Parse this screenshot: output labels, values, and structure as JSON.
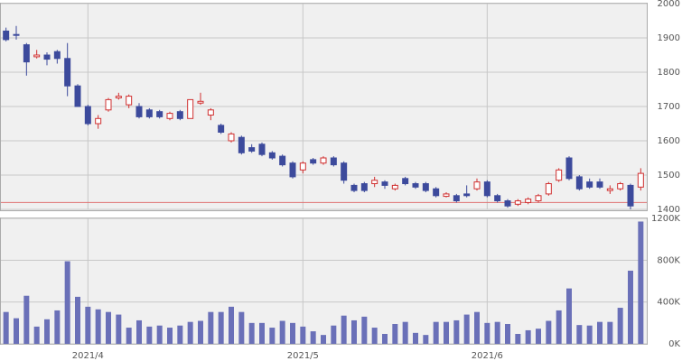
{
  "chart_data": [
    {
      "type": "candlestick",
      "categories": [
        null,
        null,
        null,
        null,
        null,
        null,
        null,
        null,
        "2021/4",
        null,
        null,
        null,
        null,
        null,
        null,
        null,
        null,
        null,
        null,
        null,
        null,
        null,
        null,
        null,
        null,
        null,
        null,
        null,
        null,
        "2021/5",
        null,
        null,
        null,
        null,
        null,
        null,
        null,
        null,
        null,
        null,
        null,
        null,
        null,
        null,
        null,
        null,
        null,
        "2021/6",
        null,
        null,
        null,
        null,
        null,
        null,
        null,
        null,
        null,
        null,
        null,
        null,
        null,
        null,
        null
      ],
      "series": [
        {
          "name": "open",
          "values": [
            1920,
            1910,
            1880,
            1845,
            1850,
            1860,
            1840,
            1760,
            1700,
            1650,
            1690,
            1725,
            1705,
            1700,
            1690,
            1685,
            1665,
            1685,
            1665,
            1710,
            1675,
            1645,
            1600,
            1610,
            1580,
            1590,
            1565,
            1555,
            1535,
            1515,
            1545,
            1535,
            1550,
            1535,
            1470,
            1475,
            1475,
            1480,
            1460,
            1490,
            1475,
            1475,
            1460,
            1438,
            1440,
            1445,
            1460,
            1480,
            1440,
            1425,
            1415,
            1420,
            1425,
            1445,
            1485,
            1550,
            1495,
            1480,
            1480,
            1455,
            1460,
            1470,
            1465
          ]
        },
        {
          "name": "high",
          "values": [
            1930,
            1935,
            1885,
            1865,
            1858,
            1865,
            1885,
            1765,
            1705,
            1675,
            1725,
            1740,
            1735,
            1710,
            1695,
            1690,
            1685,
            1690,
            1720,
            1740,
            1695,
            1650,
            1625,
            1615,
            1590,
            1595,
            1570,
            1560,
            1540,
            1540,
            1550,
            1555,
            1555,
            1540,
            1475,
            1480,
            1495,
            1485,
            1475,
            1495,
            1480,
            1480,
            1465,
            1450,
            1445,
            1470,
            1490,
            1485,
            1445,
            1430,
            1430,
            1435,
            1445,
            1480,
            1520,
            1555,
            1500,
            1490,
            1490,
            1470,
            1480,
            1475,
            1520
          ]
        },
        {
          "name": "low",
          "values": [
            1890,
            1895,
            1790,
            1840,
            1820,
            1825,
            1730,
            1700,
            1645,
            1635,
            1685,
            1720,
            1695,
            1665,
            1665,
            1665,
            1660,
            1660,
            1665,
            1705,
            1660,
            1620,
            1595,
            1560,
            1565,
            1555,
            1545,
            1525,
            1490,
            1505,
            1530,
            1530,
            1525,
            1475,
            1450,
            1450,
            1465,
            1460,
            1455,
            1470,
            1460,
            1450,
            1435,
            1435,
            1420,
            1435,
            1455,
            1435,
            1420,
            1405,
            1410,
            1415,
            1420,
            1440,
            1480,
            1485,
            1455,
            1460,
            1460,
            1445,
            1455,
            1400,
            1455
          ]
        },
        {
          "name": "close",
          "values": [
            1895,
            1908,
            1830,
            1850,
            1838,
            1840,
            1760,
            1700,
            1650,
            1665,
            1720,
            1730,
            1730,
            1670,
            1670,
            1670,
            1680,
            1665,
            1720,
            1715,
            1690,
            1625,
            1620,
            1565,
            1570,
            1560,
            1550,
            1530,
            1495,
            1535,
            1535,
            1550,
            1530,
            1485,
            1455,
            1455,
            1485,
            1470,
            1470,
            1475,
            1465,
            1455,
            1440,
            1445,
            1425,
            1440,
            1480,
            1440,
            1425,
            1410,
            1425,
            1430,
            1440,
            1475,
            1515,
            1490,
            1460,
            1465,
            1465,
            1460,
            1475,
            1410,
            1505
          ]
        }
      ],
      "up_color": "#d03030",
      "down_color": "#3c4a9c",
      "hline": 1420,
      "hline_color": "#e07070",
      "ylim": [
        1400,
        2000
      ],
      "yticks": [
        1400,
        1500,
        1600,
        1700,
        1800,
        1900,
        2000
      ],
      "grid": true
    },
    {
      "type": "bar",
      "color": "#6a70b8",
      "values": [
        305000,
        245000,
        460000,
        165000,
        235000,
        320000,
        790000,
        450000,
        355000,
        330000,
        305000,
        280000,
        155000,
        225000,
        165000,
        175000,
        155000,
        175000,
        210000,
        220000,
        305000,
        305000,
        355000,
        305000,
        200000,
        200000,
        155000,
        220000,
        200000,
        165000,
        120000,
        85000,
        175000,
        270000,
        225000,
        260000,
        155000,
        95000,
        190000,
        210000,
        105000,
        85000,
        210000,
        210000,
        225000,
        280000,
        305000,
        200000,
        210000,
        190000,
        95000,
        130000,
        145000,
        220000,
        320000,
        530000,
        180000,
        175000,
        210000,
        210000,
        345000,
        700000,
        1170000
      ],
      "ylim": [
        0,
        1200000
      ],
      "yticks": [
        {
          "value": 0,
          "label": "0K"
        },
        {
          "value": 400000,
          "label": "400K"
        },
        {
          "value": 800000,
          "label": "800K"
        },
        {
          "value": 1200000,
          "label": "1200K"
        }
      ],
      "grid": true
    }
  ]
}
